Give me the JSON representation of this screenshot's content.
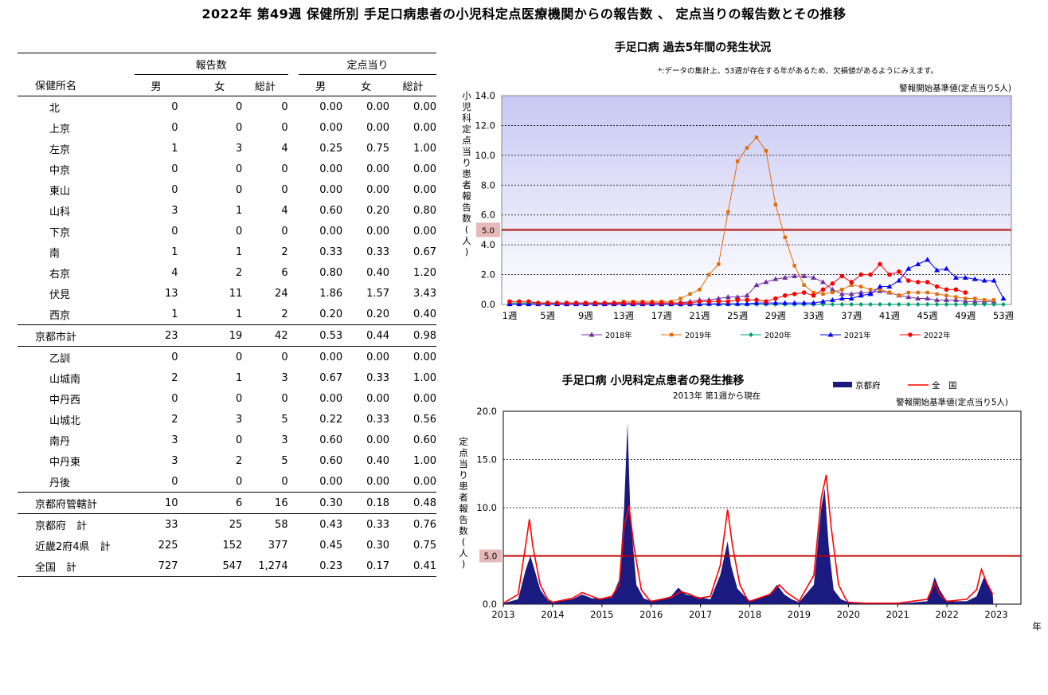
{
  "page": {
    "title": "2022年 第49週 保健所別 手足口病患者の小児科定点医療機関からの報告数 、 定点当りの報告数とその推移"
  },
  "table": {
    "group_headers": {
      "reports": "報告数",
      "per_sentinel": "定点当り"
    },
    "columns": [
      "保健所名",
      "男",
      "女",
      "総計",
      "男",
      "女",
      "総計"
    ],
    "rows": [
      {
        "name": "北",
        "indent": true,
        "m": "0",
        "f": "0",
        "t": "0",
        "pm": "0.00",
        "pf": "0.00",
        "pt": "0.00"
      },
      {
        "name": "上京",
        "indent": true,
        "m": "0",
        "f": "0",
        "t": "0",
        "pm": "0.00",
        "pf": "0.00",
        "pt": "0.00"
      },
      {
        "name": "左京",
        "indent": true,
        "m": "1",
        "f": "3",
        "t": "4",
        "pm": "0.25",
        "pf": "0.75",
        "pt": "1.00"
      },
      {
        "name": "中京",
        "indent": true,
        "m": "0",
        "f": "0",
        "t": "0",
        "pm": "0.00",
        "pf": "0.00",
        "pt": "0.00"
      },
      {
        "name": "東山",
        "indent": true,
        "m": "0",
        "f": "0",
        "t": "0",
        "pm": "0.00",
        "pf": "0.00",
        "pt": "0.00"
      },
      {
        "name": "山科",
        "indent": true,
        "m": "3",
        "f": "1",
        "t": "4",
        "pm": "0.60",
        "pf": "0.20",
        "pt": "0.80"
      },
      {
        "name": "下京",
        "indent": true,
        "m": "0",
        "f": "0",
        "t": "0",
        "pm": "0.00",
        "pf": "0.00",
        "pt": "0.00"
      },
      {
        "name": "南",
        "indent": true,
        "m": "1",
        "f": "1",
        "t": "2",
        "pm": "0.33",
        "pf": "0.33",
        "pt": "0.67"
      },
      {
        "name": "右京",
        "indent": true,
        "m": "4",
        "f": "2",
        "t": "6",
        "pm": "0.80",
        "pf": "0.40",
        "pt": "1.20"
      },
      {
        "name": "伏見",
        "indent": true,
        "m": "13",
        "f": "11",
        "t": "24",
        "pm": "1.86",
        "pf": "1.57",
        "pt": "3.43"
      },
      {
        "name": "西京",
        "indent": true,
        "m": "1",
        "f": "1",
        "t": "2",
        "pm": "0.20",
        "pf": "0.20",
        "pt": "0.40"
      },
      {
        "name": "京都市計",
        "indent": false,
        "sep": true,
        "m": "23",
        "f": "19",
        "t": "42",
        "pm": "0.53",
        "pf": "0.44",
        "pt": "0.98"
      },
      {
        "name": "乙訓",
        "indent": true,
        "sep": true,
        "m": "0",
        "f": "0",
        "t": "0",
        "pm": "0.00",
        "pf": "0.00",
        "pt": "0.00"
      },
      {
        "name": "山城南",
        "indent": true,
        "m": "2",
        "f": "1",
        "t": "3",
        "pm": "0.67",
        "pf": "0.33",
        "pt": "1.00"
      },
      {
        "name": "中丹西",
        "indent": true,
        "m": "0",
        "f": "0",
        "t": "0",
        "pm": "0.00",
        "pf": "0.00",
        "pt": "0.00"
      },
      {
        "name": "山城北",
        "indent": true,
        "m": "2",
        "f": "3",
        "t": "5",
        "pm": "0.22",
        "pf": "0.33",
        "pt": "0.56"
      },
      {
        "name": "南丹",
        "indent": true,
        "m": "3",
        "f": "0",
        "t": "3",
        "pm": "0.60",
        "pf": "0.00",
        "pt": "0.60"
      },
      {
        "name": "中丹東",
        "indent": true,
        "m": "3",
        "f": "2",
        "t": "5",
        "pm": "0.60",
        "pf": "0.40",
        "pt": "1.00"
      },
      {
        "name": "丹後",
        "indent": true,
        "m": "0",
        "f": "0",
        "t": "0",
        "pm": "0.00",
        "pf": "0.00",
        "pt": "0.00"
      },
      {
        "name": "京都府管轄計",
        "indent": false,
        "sep": true,
        "m": "10",
        "f": "6",
        "t": "16",
        "pm": "0.30",
        "pf": "0.18",
        "pt": "0.48"
      },
      {
        "name": "京都府　計",
        "indent": false,
        "sep": true,
        "m": "33",
        "f": "25",
        "t": "58",
        "pm": "0.43",
        "pf": "0.33",
        "pt": "0.76"
      },
      {
        "name": "近畿2府4県　計",
        "indent": false,
        "m": "225",
        "f": "152",
        "t": "377",
        "pm": "0.45",
        "pf": "0.30",
        "pt": "0.75"
      },
      {
        "name": "全国　計",
        "indent": false,
        "m": "727",
        "f": "547",
        "t": "1,274",
        "pm": "0.23",
        "pf": "0.17",
        "pt": "0.41"
      }
    ]
  },
  "chart_data": [
    {
      "type": "line",
      "title": "手足口病 過去5年間の発生状況",
      "note": "*:データの集計上、53週が存在する年があるため、欠損値があるようにみえます。",
      "alert_label": "警報開始基準値(定点当り5人)",
      "alert_value": 5.0,
      "alert_value_label": "5.0",
      "ylabel": "小児科定点当り患者報告数(人)",
      "ylim": [
        0,
        14
      ],
      "yticks": [
        "0.0",
        "2.0",
        "4.0",
        "6.0",
        "8.0",
        "10.0",
        "12.0",
        "14.0"
      ],
      "xticks": [
        "1週",
        "5週",
        "9週",
        "13週",
        "17週",
        "21週",
        "25週",
        "29週",
        "33週",
        "37週",
        "41週",
        "45週",
        "49週",
        "53週"
      ],
      "x_weeks": [
        1,
        2,
        3,
        4,
        5,
        6,
        7,
        8,
        9,
        10,
        11,
        12,
        13,
        14,
        15,
        16,
        17,
        18,
        19,
        20,
        21,
        22,
        23,
        24,
        25,
        26,
        27,
        28,
        29,
        30,
        31,
        32,
        33,
        34,
        35,
        36,
        37,
        38,
        39,
        40,
        41,
        42,
        43,
        44,
        45,
        46,
        47,
        48,
        49,
        50,
        51,
        52,
        53
      ],
      "series": [
        {
          "name": "2018年",
          "color": "#7030a0",
          "marker": "triangle",
          "values": [
            0.1,
            0.1,
            0.1,
            0.1,
            0.1,
            0.1,
            0.1,
            0.1,
            0.1,
            0.1,
            0.1,
            0.1,
            0.1,
            0.1,
            0.1,
            0.1,
            0.1,
            0.1,
            0.1,
            0.2,
            0.3,
            0.3,
            0.4,
            0.5,
            0.5,
            0.6,
            1.3,
            1.5,
            1.7,
            1.8,
            1.9,
            1.9,
            1.8,
            1.5,
            1.0,
            0.7,
            0.7,
            0.8,
            0.8,
            0.9,
            0.8,
            0.6,
            0.5,
            0.4,
            0.4,
            0.3,
            0.3,
            0.3,
            0.2,
            0.2,
            0.2,
            0.2,
            null
          ]
        },
        {
          "name": "2019年",
          "color": "#e36c09",
          "marker": "square",
          "values": [
            0.1,
            0.1,
            0.1,
            0.1,
            0.1,
            0.1,
            0.1,
            0.1,
            0.1,
            0.1,
            0.1,
            0.1,
            0.2,
            0.2,
            0.2,
            0.2,
            0.2,
            0.2,
            0.4,
            0.7,
            1.0,
            2.0,
            2.7,
            6.2,
            9.6,
            10.5,
            11.2,
            10.3,
            6.7,
            4.5,
            2.6,
            1.3,
            0.8,
            0.7,
            0.8,
            1.0,
            1.3,
            1.2,
            1.0,
            1.0,
            0.8,
            0.6,
            0.8,
            0.8,
            0.8,
            0.7,
            0.6,
            0.5,
            0.4,
            0.4,
            0.3,
            0.3,
            null
          ]
        },
        {
          "name": "2020年",
          "color": "#00a070",
          "marker": "diamond",
          "values": [
            0.1,
            0.1,
            0.1,
            0.1,
            0.1,
            0.1,
            0.1,
            0.1,
            0.1,
            0.1,
            0.05,
            0.05,
            0.02,
            0.02,
            0.02,
            0.02,
            0.01,
            0.01,
            0.01,
            0.01,
            0.01,
            0.01,
            0.01,
            0.01,
            0.01,
            0.01,
            0.01,
            0.01,
            0.01,
            0.01,
            0.01,
            0.01,
            0.01,
            0.01,
            0.01,
            0.01,
            0.01,
            0.01,
            0.01,
            0.01,
            0.01,
            0.01,
            0.01,
            0.01,
            0.01,
            0.01,
            0.01,
            0.01,
            0.01,
            0.01,
            0.01,
            0.01,
            0.01
          ]
        },
        {
          "name": "2021年",
          "color": "#0000ff",
          "marker": "triangle",
          "values": [
            0.02,
            0.02,
            0.02,
            0.02,
            0.02,
            0.02,
            0.02,
            0.02,
            0.02,
            0.02,
            0.02,
            0.02,
            0.02,
            0.02,
            0.02,
            0.02,
            0.02,
            0.02,
            0.02,
            0.02,
            0.02,
            0.05,
            0.05,
            0.05,
            0.05,
            0.05,
            0.1,
            0.1,
            0.1,
            0.1,
            0.1,
            0.1,
            0.1,
            0.2,
            0.3,
            0.4,
            0.4,
            0.6,
            0.7,
            1.2,
            1.2,
            1.6,
            2.4,
            2.7,
            3.0,
            2.3,
            2.4,
            1.8,
            1.8,
            1.7,
            1.6,
            1.6,
            0.4
          ]
        },
        {
          "name": "2022年",
          "color": "#ff0000",
          "marker": "circle",
          "values": [
            0.2,
            0.2,
            0.2,
            0.1,
            0.1,
            0.1,
            0.1,
            0.1,
            0.1,
            0.1,
            0.1,
            0.1,
            0.1,
            0.1,
            0.1,
            0.1,
            0.1,
            0.1,
            0.1,
            0.1,
            0.2,
            0.2,
            0.2,
            0.2,
            0.3,
            0.3,
            0.3,
            0.2,
            0.4,
            0.6,
            0.7,
            0.8,
            0.6,
            1.0,
            1.4,
            1.9,
            1.5,
            2.0,
            2.0,
            2.7,
            2.0,
            2.2,
            1.6,
            1.5,
            1.5,
            1.2,
            1.0,
            1.0,
            0.8,
            null,
            null,
            null,
            null
          ]
        }
      ]
    },
    {
      "type": "area",
      "title": "手足口病 小児科定点患者の発生推移",
      "subtitle": "2013年 第1週から現在",
      "alert_label": "警報開始基準値(定点当り5人)",
      "alert_value": 5.0,
      "alert_value_label": "5.0",
      "ylabel": "定点当り患者報告数(人)",
      "xlabel": "年",
      "ylim": [
        0,
        20
      ],
      "yticks": [
        "0.0",
        "5.0",
        "10.0",
        "15.0",
        "20.0"
      ],
      "xticks": [
        "2013",
        "2014",
        "2015",
        "2016",
        "2017",
        "2018",
        "2019",
        "2020",
        "2021",
        "2022",
        "2023"
      ],
      "series": [
        {
          "name": "京都府",
          "color": "#1a1a80",
          "type": "area",
          "points": [
            [
              2013.0,
              0.1
            ],
            [
              2013.3,
              0.5
            ],
            [
              2013.45,
              3.5
            ],
            [
              2013.55,
              5.0
            ],
            [
              2013.62,
              3.8
            ],
            [
              2013.75,
              1.5
            ],
            [
              2013.9,
              0.4
            ],
            [
              2014.0,
              0.2
            ],
            [
              2014.4,
              0.5
            ],
            [
              2014.6,
              1.0
            ],
            [
              2014.8,
              0.6
            ],
            [
              2014.95,
              0.6
            ],
            [
              2015.2,
              0.7
            ],
            [
              2015.35,
              2.5
            ],
            [
              2015.45,
              10.0
            ],
            [
              2015.52,
              18.8
            ],
            [
              2015.58,
              9.0
            ],
            [
              2015.7,
              2.0
            ],
            [
              2015.85,
              0.6
            ],
            [
              2016.0,
              0.3
            ],
            [
              2016.4,
              0.8
            ],
            [
              2016.55,
              1.7
            ],
            [
              2016.7,
              1.0
            ],
            [
              2016.9,
              0.8
            ],
            [
              2017.2,
              0.5
            ],
            [
              2017.4,
              3.0
            ],
            [
              2017.55,
              6.5
            ],
            [
              2017.62,
              4.0
            ],
            [
              2017.75,
              1.6
            ],
            [
              2017.9,
              0.8
            ],
            [
              2018.0,
              0.3
            ],
            [
              2018.4,
              1.0
            ],
            [
              2018.55,
              2.0
            ],
            [
              2018.7,
              1.0
            ],
            [
              2018.85,
              0.5
            ],
            [
              2019.0,
              0.2
            ],
            [
              2019.3,
              2.0
            ],
            [
              2019.45,
              10.0
            ],
            [
              2019.52,
              12.0
            ],
            [
              2019.6,
              6.0
            ],
            [
              2019.7,
              1.5
            ],
            [
              2019.85,
              0.5
            ],
            [
              2020.0,
              0.2
            ],
            [
              2020.3,
              0.05
            ],
            [
              2021.0,
              0.05
            ],
            [
              2021.6,
              0.3
            ],
            [
              2021.75,
              2.8
            ],
            [
              2021.85,
              1.5
            ],
            [
              2022.0,
              0.3
            ],
            [
              2022.4,
              0.3
            ],
            [
              2022.6,
              0.8
            ],
            [
              2022.75,
              2.8
            ],
            [
              2022.85,
              1.8
            ],
            [
              2022.93,
              0.9
            ],
            [
              2022.94,
              0
            ]
          ]
        },
        {
          "name": "全　国",
          "color": "#ff0000",
          "type": "line",
          "points": [
            [
              2013.0,
              0.1
            ],
            [
              2013.3,
              1.0
            ],
            [
              2013.45,
              6.0
            ],
            [
              2013.53,
              8.8
            ],
            [
              2013.6,
              6.0
            ],
            [
              2013.75,
              2.0
            ],
            [
              2013.9,
              0.5
            ],
            [
              2014.0,
              0.2
            ],
            [
              2014.4,
              0.6
            ],
            [
              2014.6,
              1.2
            ],
            [
              2014.8,
              0.8
            ],
            [
              2014.95,
              0.5
            ],
            [
              2015.2,
              0.8
            ],
            [
              2015.35,
              2.0
            ],
            [
              2015.45,
              8.0
            ],
            [
              2015.55,
              10.2
            ],
            [
              2015.65,
              6.0
            ],
            [
              2015.8,
              1.5
            ],
            [
              2015.95,
              0.5
            ],
            [
              2016.0,
              0.3
            ],
            [
              2016.4,
              0.7
            ],
            [
              2016.6,
              1.3
            ],
            [
              2016.8,
              1.0
            ],
            [
              2016.95,
              0.6
            ],
            [
              2017.2,
              0.8
            ],
            [
              2017.4,
              4.0
            ],
            [
              2017.55,
              9.8
            ],
            [
              2017.65,
              6.0
            ],
            [
              2017.8,
              2.0
            ],
            [
              2017.95,
              0.5
            ],
            [
              2018.0,
              0.3
            ],
            [
              2018.4,
              1.0
            ],
            [
              2018.6,
              2.0
            ],
            [
              2018.75,
              1.2
            ],
            [
              2018.95,
              0.5
            ],
            [
              2019.0,
              0.3
            ],
            [
              2019.3,
              3.0
            ],
            [
              2019.45,
              11.0
            ],
            [
              2019.55,
              13.4
            ],
            [
              2019.65,
              8.0
            ],
            [
              2019.8,
              2.0
            ],
            [
              2019.95,
              0.5
            ],
            [
              2020.0,
              0.2
            ],
            [
              2020.3,
              0.1
            ],
            [
              2021.0,
              0.1
            ],
            [
              2021.6,
              0.5
            ],
            [
              2021.75,
              2.2
            ],
            [
              2021.85,
              1.0
            ],
            [
              2022.0,
              0.3
            ],
            [
              2022.4,
              0.5
            ],
            [
              2022.6,
              1.5
            ],
            [
              2022.7,
              3.6
            ],
            [
              2022.8,
              2.3
            ],
            [
              2022.93,
              1.0
            ]
          ]
        }
      ]
    }
  ]
}
